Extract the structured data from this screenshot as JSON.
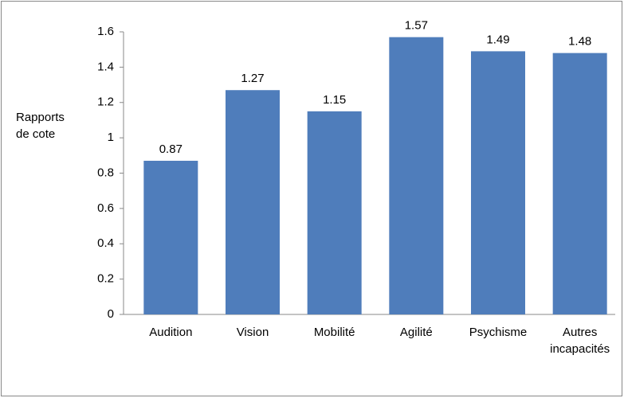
{
  "chart_data": {
    "type": "bar",
    "y_label": "Rapports de cote",
    "categories": [
      "Audition",
      "Vision",
      "Mobilité",
      "Agilité",
      "Psychisme",
      "Autres incapacités"
    ],
    "values": [
      0.87,
      1.27,
      1.15,
      1.57,
      1.49,
      1.48
    ],
    "color": "#4f7dbb",
    "ylim": [
      0,
      1.6
    ],
    "yticks": [
      0,
      0.2,
      0.4,
      0.6,
      0.8,
      1,
      1.2,
      1.4,
      1.6
    ],
    "grid": false
  }
}
